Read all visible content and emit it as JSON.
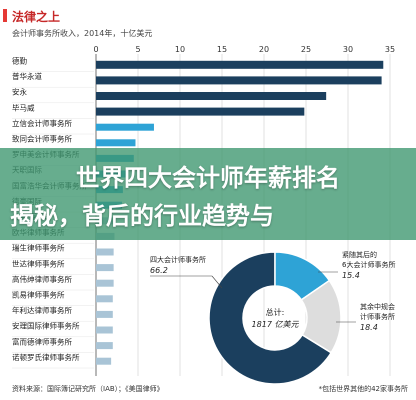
{
  "header": {
    "title": "法律之上",
    "subtitle": "会计师事务所收入，2014年，十亿美元"
  },
  "banner": {
    "line1": "世界四大会计师年薪排名",
    "line2": "揭秘，背后的行业趋势与"
  },
  "footer": {
    "source": "资料来源：国际簿记研究所（IAB）；《美国律师》",
    "note": "*包括世界其他的42家事务所"
  },
  "colors": {
    "dark_bar": "#1b3f5e",
    "light_bar": "#2ea3d6",
    "pale_bar": "#a9c4d6",
    "grid": "#d9d9d9",
    "pie_dark": "#1b3f5e",
    "pie_light": "#2ea3d6",
    "pie_grey": "#dddddd",
    "banner": "#3c966e"
  },
  "chart_data": [
    {
      "type": "bar",
      "orientation": "horizontal",
      "title": "会计师事务所收入，2014年，十亿美元",
      "x_ticks": [
        0,
        5,
        10,
        15,
        20,
        25,
        30,
        35
      ],
      "xlim": [
        0,
        35
      ],
      "grid": true,
      "categories": [
        "德勤",
        "普华永道",
        "安永",
        "毕马威",
        "立信会计师事务所",
        "致同会计师事务所",
        "罗申美会计师事务所",
        "天职国际",
        "国富浩华会计师事务所",
        "德豪国际",
        "贝克·麦坚时",
        "欧华律师事务所",
        "瑞生律师事务所",
        "世达律师事务所",
        "高伟绅律师事务所",
        "凯易律师事务所",
        "年利达律师事务所",
        "安理国际律师事务所",
        "富而德律师事务所",
        "诺顿罗氏律师事务所"
      ],
      "values": [
        34.2,
        34.0,
        27.4,
        24.8,
        6.9,
        4.7,
        4.5,
        3.8,
        3.2,
        3.1,
        2.4,
        2.2,
        2.1,
        2.1,
        2.1,
        2.0,
        2.0,
        2.0,
        2.0,
        1.8
      ],
      "series_group": [
        "big4",
        "big4",
        "big4",
        "big4",
        "accounting",
        "accounting",
        "accounting",
        "accounting",
        "accounting",
        "accounting",
        "law",
        "law",
        "law",
        "law",
        "law",
        "law",
        "law",
        "law",
        "law",
        "law"
      ]
    },
    {
      "type": "pie",
      "center_label": "总计:",
      "center_value": "1817 亿美元",
      "slices": [
        {
          "label": "四大会计师事务所",
          "value": 66.2
        },
        {
          "label": "紧随其后的6大会计师事务所",
          "value": 15.4
        },
        {
          "label": "其余中规会计师事务所",
          "value": 18.4
        }
      ]
    }
  ]
}
